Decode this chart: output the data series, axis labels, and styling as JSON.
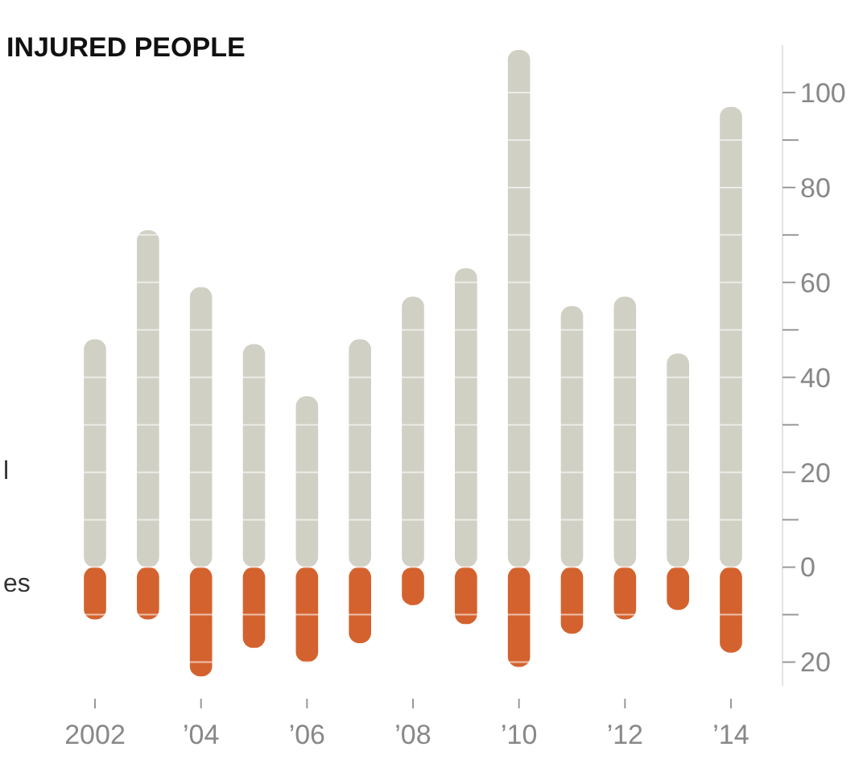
{
  "chart_data": {
    "type": "bar",
    "title": "INJURED PEOPLE",
    "stacked": true,
    "categories": [
      "2002",
      null,
      "’04",
      null,
      "’06",
      null,
      "’08",
      null,
      "’10",
      null,
      "’12",
      null,
      "’14"
    ],
    "series": [
      {
        "color": "#d0d0c4",
        "values": [
          48,
          71,
          59,
          47,
          36,
          48,
          57,
          63,
          109,
          55,
          57,
          45,
          97
        ]
      },
      {
        "color": "#d4622e",
        "values": [
          -11,
          -11,
          -23,
          -17,
          -20,
          -16,
          -8,
          -12,
          -21,
          -14,
          -11,
          -9,
          -18
        ]
      }
    ],
    "ylim": [
      -25,
      110
    ],
    "grid": "y",
    "yticks": [
      {
        "value": -20,
        "label": "20"
      },
      {
        "value": -10,
        "label": null
      },
      0,
      {
        "value": 10,
        "label": null
      },
      20,
      {
        "value": 30,
        "label": null
      },
      40,
      {
        "value": 50,
        "label": null
      },
      60,
      {
        "value": 70,
        "label": null
      },
      80,
      {
        "value": 90,
        "label": null
      },
      100
    ],
    "annotations": [
      "l",
      "es"
    ]
  }
}
